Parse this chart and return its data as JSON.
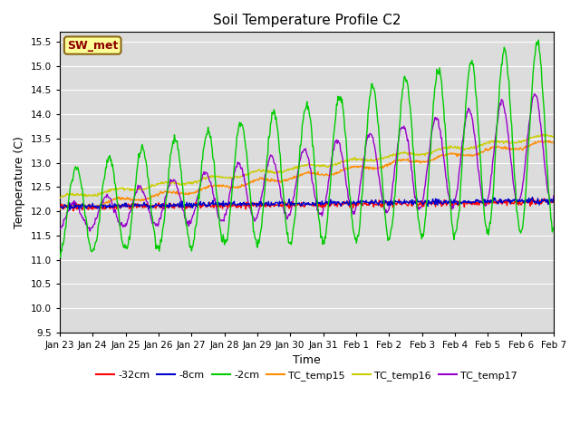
{
  "title": "Soil Temperature Profile C2",
  "xlabel": "Time",
  "ylabel": "Temperature (C)",
  "ylim": [
    9.5,
    15.7
  ],
  "yticks": [
    9.5,
    10.0,
    10.5,
    11.0,
    11.5,
    12.0,
    12.5,
    13.0,
    13.5,
    14.0,
    14.5,
    15.0,
    15.5
  ],
  "bg_color": "#dcdcdc",
  "annotation_text": "SW_met",
  "annotation_fgcolor": "#8B0000",
  "annotation_bgcolor": "#FFFF99",
  "annotation_edgecolor": "#8B6914",
  "series": {
    "-32cm": {
      "color": "#FF0000",
      "linewidth": 1.0,
      "zorder": 4
    },
    "-8cm": {
      "color": "#0000CD",
      "linewidth": 1.0,
      "zorder": 4
    },
    "-2cm": {
      "color": "#00CC00",
      "linewidth": 1.0,
      "zorder": 5
    },
    "TC_temp15": {
      "color": "#FF8C00",
      "linewidth": 1.0,
      "zorder": 3
    },
    "TC_temp16": {
      "color": "#CCCC00",
      "linewidth": 1.0,
      "zorder": 3
    },
    "TC_temp17": {
      "color": "#9900CC",
      "linewidth": 1.0,
      "zorder": 3
    }
  },
  "xtick_labels": [
    "Jan 23",
    "Jan 24",
    "Jan 25",
    "Jan 26",
    "Jan 27",
    "Jan 28",
    "Jan 29",
    "Jan 30",
    "Jan 31",
    "Feb 1",
    "Feb 2",
    "Feb 3",
    "Feb 4",
    "Feb 5",
    "Feb 6",
    "Feb 7"
  ],
  "n_points": 720,
  "n_days": 15
}
